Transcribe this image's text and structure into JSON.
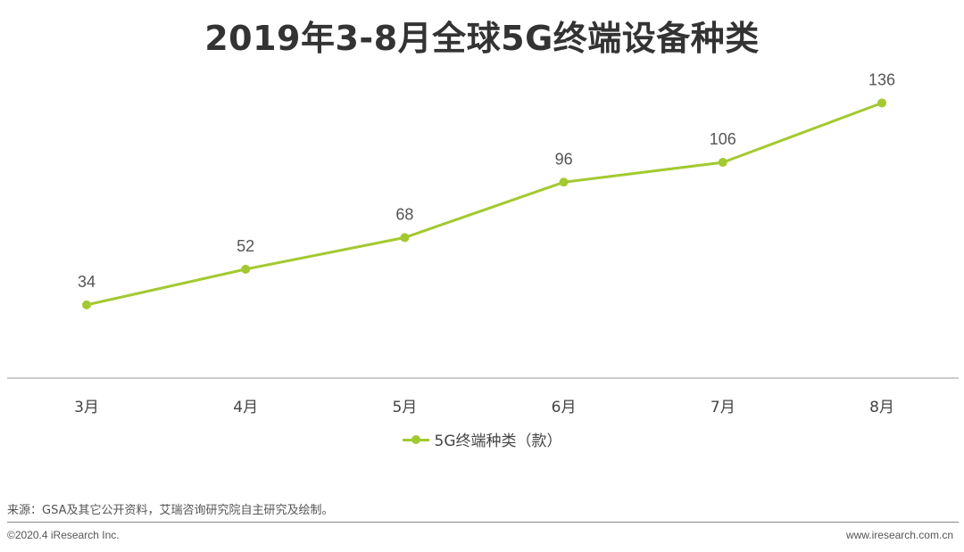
{
  "chart_data": {
    "type": "line",
    "title": "2019年3-8月全球5G终端设备种类",
    "categories": [
      "3月",
      "4月",
      "5月",
      "6月",
      "7月",
      "8月"
    ],
    "series": [
      {
        "name": "5G终端种类（款）",
        "values": [
          34,
          52,
          68,
          96,
          106,
          136
        ]
      }
    ],
    "xlabel": "",
    "ylabel": "",
    "ylim": [
      -3,
      170
    ],
    "grid": false,
    "legend_position": "bottom",
    "data_labels": true
  },
  "colors": {
    "series": "#a3c930",
    "axis": "#999999",
    "text": "#444444"
  },
  "footer": {
    "source": "来源：GSA及其它公开资料，艾瑞咨询研究院自主研究及绘制。",
    "copyright": "©2020.4 iResearch Inc.",
    "website": "www.iresearch.com.cn"
  }
}
